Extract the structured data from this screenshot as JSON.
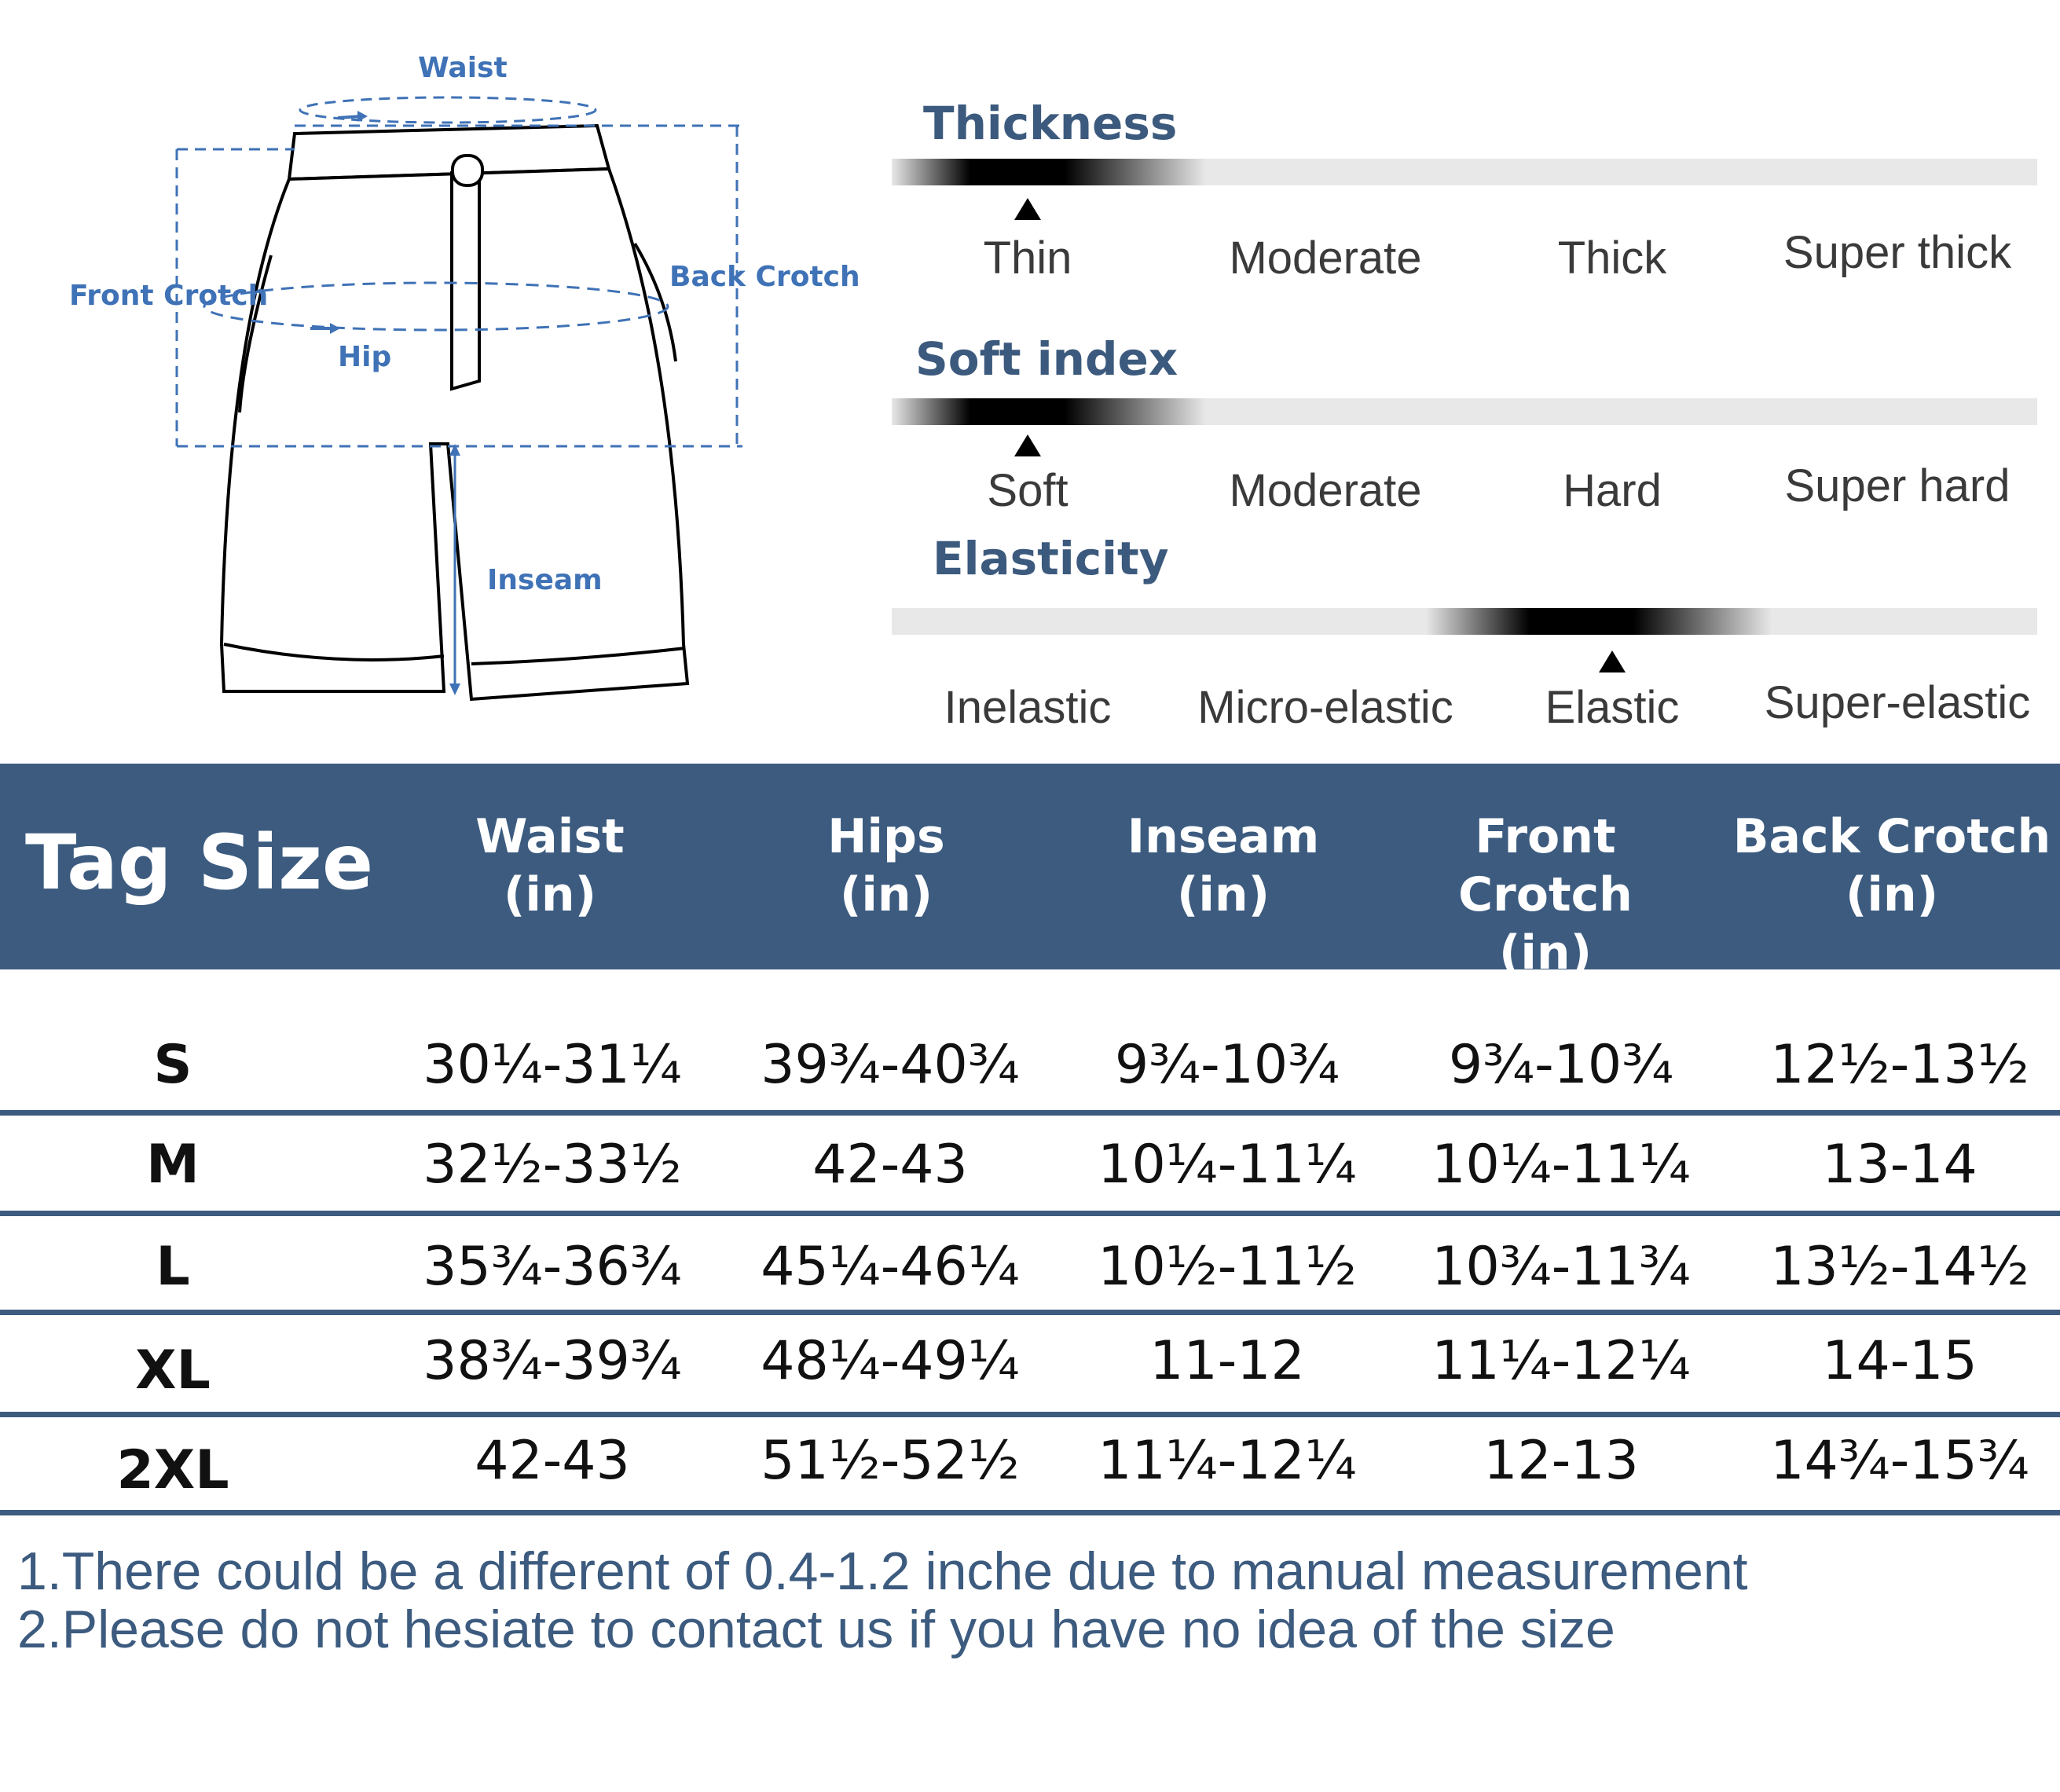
{
  "diagram": {
    "labels": {
      "waist": "Waist",
      "front_crotch": "Front Crotch",
      "back_crotch": "Back Crotch",
      "hip": "Hip",
      "inseam": "Inseam"
    },
    "accent_color": "#3f72b6"
  },
  "attributes": [
    {
      "title": "Thickness",
      "options": [
        "Thin",
        "Moderate",
        "Thick",
        "Super thick"
      ],
      "selected": "Thin"
    },
    {
      "title": "Soft index",
      "options": [
        "Soft",
        "Moderate",
        "Hard",
        "Super hard"
      ],
      "selected": "Soft"
    },
    {
      "title": "Elasticity",
      "options": [
        "Inelastic",
        "Micro-elastic",
        "Elastic",
        "Super-elastic"
      ],
      "selected": "Elastic"
    }
  ],
  "table": {
    "header": {
      "tag_size": "Tag Size",
      "columns": [
        {
          "name": "Waist",
          "unit": "(in)"
        },
        {
          "name": "Hips",
          "unit": "(in)"
        },
        {
          "name": "Inseam",
          "unit": "(in)"
        },
        {
          "name": "Front Crotch",
          "unit": "(in)"
        },
        {
          "name": "Back Crotch",
          "unit": "(in)"
        }
      ]
    },
    "rows": [
      {
        "size": "S",
        "values": [
          "30¼-31¼",
          "39¾-40¾",
          "9¾-10¾",
          "9¾-10¾",
          "12½-13½"
        ]
      },
      {
        "size": "M",
        "values": [
          "32½-33½",
          "42-43",
          "10¼-11¼",
          "10¼-11¼",
          "13-14"
        ]
      },
      {
        "size": "L",
        "values": [
          "35¾-36¾",
          "45¼-46¼",
          "10½-11½",
          "10¾-11¾",
          "13½-14½"
        ]
      },
      {
        "size": "XL",
        "values": [
          "38¾-39¾",
          "48¼-49¼",
          "11-12",
          "11¼-12¼",
          "14-15"
        ]
      },
      {
        "size": "2XL",
        "values": [
          "42-43",
          "51½-52½",
          "11¼-12¼",
          "12-13",
          "14¾-15¾"
        ]
      }
    ],
    "header_color": "#3c5b7f"
  },
  "notes": [
    "1.There could be a different of 0.4-1.2 inche due to manual measurement",
    "2.Please do not hesiate to contact us if you have no idea of the size"
  ]
}
